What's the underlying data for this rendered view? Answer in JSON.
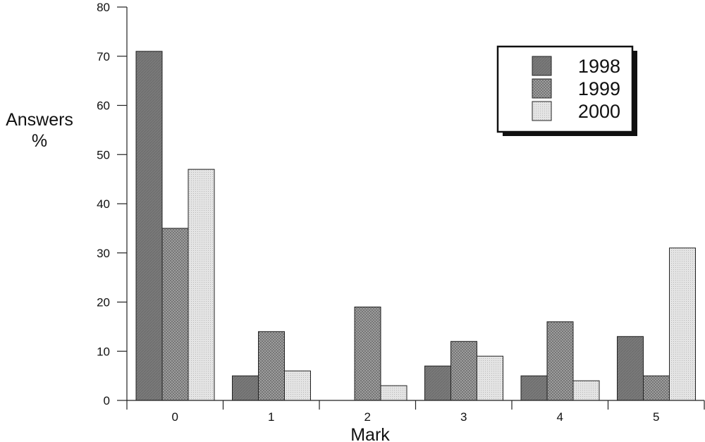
{
  "chart_data": {
    "type": "bar",
    "categories": [
      "0",
      "1",
      "2",
      "3",
      "4",
      "5"
    ],
    "series": [
      {
        "name": "1998",
        "values": [
          71,
          5,
          0,
          7,
          5,
          13
        ]
      },
      {
        "name": "1999",
        "values": [
          35,
          14,
          19,
          12,
          16,
          5
        ]
      },
      {
        "name": "2000",
        "values": [
          47,
          6,
          3,
          9,
          4,
          31
        ]
      }
    ],
    "xlabel": "Mark",
    "ylabel": [
      "Answers",
      "%"
    ],
    "ylim": [
      0,
      80
    ],
    "yticks": [
      0,
      10,
      20,
      30,
      40,
      50,
      60,
      70,
      80
    ],
    "grid": false,
    "legend_position": "top-right",
    "series_fills": [
      "solid-dark-gray",
      "cross-hatch-gray",
      "dotted-light-gray"
    ]
  }
}
